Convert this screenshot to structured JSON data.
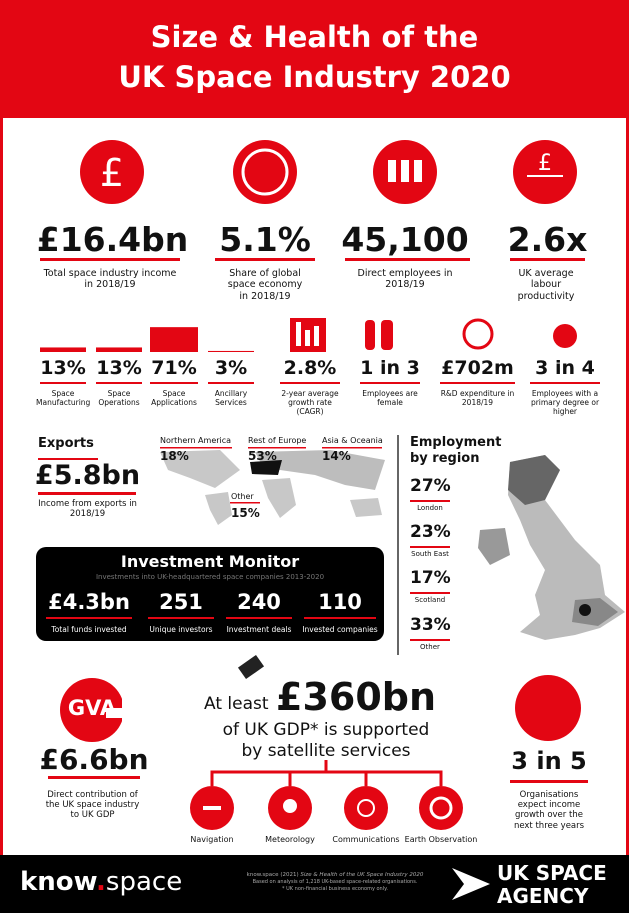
{
  "header": {
    "title_line1": "Size & Health of the",
    "title_line2": "UK Space Industry 2020"
  },
  "headline_stats": [
    {
      "value": "£16.4bn",
      "label": "Total space industry income in 2018/19"
    },
    {
      "value": "5.1%",
      "label": "Share of global space economy in 2018/19"
    },
    {
      "value": "45,100",
      "label": "Direct employees in 2018/19"
    },
    {
      "value": "2.6x",
      "label": "UK average labour productivity"
    }
  ],
  "segments": [
    {
      "value": 13,
      "label": "13%",
      "name": "Space Manufacturing"
    },
    {
      "value": 13,
      "label": "13%",
      "name": "Space Operations"
    },
    {
      "value": 71,
      "label": "71%",
      "name": "Space Applications"
    },
    {
      "value": 3,
      "label": "3%",
      "name": "Ancillary Services"
    }
  ],
  "small_stats": [
    {
      "value": "2.8%",
      "label": "2-year average growth rate (CAGR)"
    },
    {
      "value": "1 in 3",
      "label": "Employees are female"
    },
    {
      "value": "£702m",
      "label": "R&D expenditure in 2018/19"
    },
    {
      "value": "3 in 4",
      "label": "Employees with a primary degree or higher"
    }
  ],
  "exports": {
    "title": "Exports",
    "value": "£5.8bn",
    "label": "Income from exports in 2018/19",
    "regions": [
      {
        "name": "Northern America",
        "value": "18%"
      },
      {
        "name": "Rest of Europe",
        "value": "53%"
      },
      {
        "name": "Asia & Oceania",
        "value": "14%"
      },
      {
        "name": "Other",
        "value": "15%"
      }
    ]
  },
  "investment": {
    "title": "Investment Monitor",
    "subtitle": "Investments into UK-headquartered space companies 2013-2020",
    "stats": [
      {
        "value": "£4.3bn",
        "label": "Total funds invested"
      },
      {
        "value": "251",
        "label": "Unique investors"
      },
      {
        "value": "240",
        "label": "Investment deals"
      },
      {
        "value": "110",
        "label": "Invested companies"
      }
    ]
  },
  "employment": {
    "title_line1": "Employment",
    "title_line2": "by region",
    "regions": [
      {
        "value": "27%",
        "name": "London"
      },
      {
        "value": "23%",
        "name": "South East"
      },
      {
        "value": "17%",
        "name": "Scotland"
      },
      {
        "value": "33%",
        "name": "Other"
      }
    ]
  },
  "gva": {
    "badge": "GVA",
    "value": "£6.6bn",
    "label": "Direct contribution of the UK space industry to UK GDP"
  },
  "gdp": {
    "prefix": "At least",
    "value": "£360bn",
    "line2": "of UK GDP* is supported",
    "line3": "by satellite services",
    "services": [
      "Navigation",
      "Meteorology",
      "Communications",
      "Earth Observation"
    ]
  },
  "growth": {
    "value": "3 in 5",
    "label": "Organisations expect income growth over the next three years"
  },
  "footer": {
    "brand_a": "know",
    "brand_dot": ".",
    "brand_b": "space",
    "citation": "know.space (2021)",
    "citation_title": "Size & Health of the UK Space Industry 2020",
    "note1": "Based on analysis of 1,218 UK-based space-related organisations.",
    "note2": "* UK non-financial business economy only.",
    "agency_line1": "UK SPACE",
    "agency_line2": "AGENCY"
  }
}
